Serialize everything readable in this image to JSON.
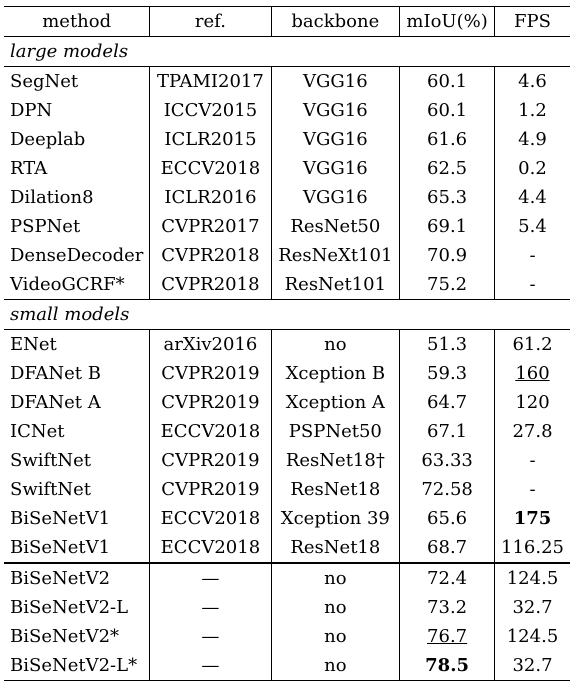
{
  "headers": [
    "method",
    "ref.",
    "backbone",
    "mIoU(%)",
    "FPS"
  ],
  "large_label": "large models",
  "large": [
    [
      "SegNet",
      "TPAMI2017",
      "VGG16",
      "60.1",
      "4.6"
    ],
    [
      "DPN",
      "ICCV2015",
      "VGG16",
      "60.1",
      "1.2"
    ],
    [
      "Deeplab",
      "ICLR2015",
      "VGG16",
      "61.6",
      "4.9"
    ],
    [
      "RTA",
      "ECCV2018",
      "VGG16",
      "62.5",
      "0.2"
    ],
    [
      "Dilation8",
      "ICLR2016",
      "VGG16",
      "65.3",
      "4.4"
    ],
    [
      "PSPNet",
      "CVPR2017",
      "ResNet50",
      "69.1",
      "5.4"
    ],
    [
      "DenseDecoder",
      "CVPR2018",
      "ResNeXt101",
      "70.9",
      "-"
    ],
    [
      "VideoGCRF*",
      "CVPR2018",
      "ResNet101",
      "75.2",
      "-"
    ]
  ],
  "small_label": "small models",
  "small": [
    [
      "ENet",
      "arXiv2016",
      "no",
      "51.3",
      "61.2"
    ],
    [
      "DFANet B",
      "CVPR2019",
      "Xception B",
      "59.3",
      "160"
    ],
    [
      "DFANet A",
      "CVPR2019",
      "Xception A",
      "64.7",
      "120"
    ],
    [
      "ICNet",
      "ECCV2018",
      "PSPNet50",
      "67.1",
      "27.8"
    ],
    [
      "SwiftNet",
      "CVPR2019",
      "ResNet18†",
      "63.33",
      "-"
    ],
    [
      "SwiftNet",
      "CVPR2019",
      "ResNet18",
      "72.58",
      "-"
    ],
    [
      "BiSeNetV1",
      "ECCV2018",
      "Xception 39",
      "65.6",
      "175"
    ],
    [
      "BiSeNetV1",
      "ECCV2018",
      "ResNet18",
      "68.7",
      "116.25"
    ]
  ],
  "ours": [
    [
      "BiSeNetV2",
      "—",
      "no",
      "72.4",
      "124.5"
    ],
    [
      "BiSeNetV2-L",
      "—",
      "no",
      "73.2",
      "32.7"
    ],
    [
      "BiSeNetV2*",
      "—",
      "no",
      "76.7",
      "124.5"
    ],
    [
      "BiSeNetV2-L*",
      "—",
      "no",
      "78.5",
      "32.7"
    ]
  ]
}
